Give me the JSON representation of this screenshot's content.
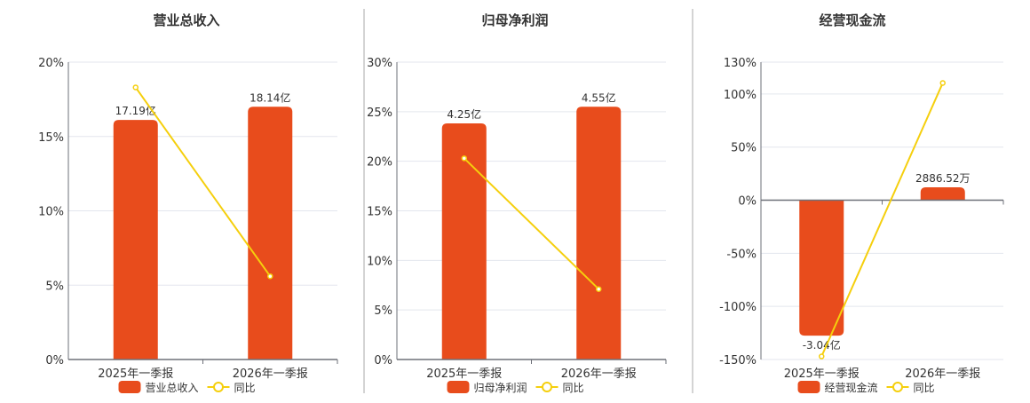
{
  "colors": {
    "bar": "#e84c1c",
    "line": "#f5cf0d",
    "grid": "#e3e6ee",
    "axis": "#6e7079",
    "text": "#333333",
    "divider": "#a9a9a9"
  },
  "chart_data": [
    {
      "type": "bar+line",
      "title": "营业总收入",
      "categories": [
        "2025年一季报",
        "2026年一季报"
      ],
      "yticks": [
        "0%",
        "5%",
        "10%",
        "15%",
        "20%"
      ],
      "ylim": [
        0,
        20
      ],
      "tick_values": [
        0,
        5,
        10,
        15,
        20
      ],
      "series": [
        {
          "name": "营业总收入",
          "kind": "bar",
          "values": [
            17.19,
            18.14
          ],
          "labels": [
            "17.19亿",
            "18.14亿"
          ],
          "unit": "亿"
        },
        {
          "name": "同比",
          "kind": "line",
          "values": [
            18.3,
            5.6
          ],
          "unit": "%"
        }
      ],
      "legend": "bottom",
      "grid": true
    },
    {
      "type": "bar+line",
      "title": "归母净利润",
      "categories": [
        "2025年一季报",
        "2026年一季报"
      ],
      "yticks": [
        "0%",
        "5%",
        "10%",
        "15%",
        "20%",
        "25%",
        "30%"
      ],
      "ylim": [
        0,
        30
      ],
      "tick_values": [
        0,
        5,
        10,
        15,
        20,
        25,
        30
      ],
      "series": [
        {
          "name": "归母净利润",
          "kind": "bar",
          "values": [
            4.25,
            4.55
          ],
          "labels": [
            "4.25亿",
            "4.55亿"
          ],
          "unit": "亿"
        },
        {
          "name": "同比",
          "kind": "line",
          "values": [
            20.3,
            7.1
          ],
          "unit": "%"
        }
      ],
      "legend": "bottom",
      "grid": true
    },
    {
      "type": "bar+line",
      "title": "经营现金流",
      "categories": [
        "2025年一季报",
        "2026年一季报"
      ],
      "yticks": [
        "-150%",
        "-100%",
        "-50%",
        "0%",
        "50%",
        "100%",
        "130%"
      ],
      "ylim": [
        -150,
        130
      ],
      "tick_values": [
        -150,
        -100,
        -50,
        0,
        50,
        100,
        130
      ],
      "series": [
        {
          "name": "经营现金流",
          "kind": "bar",
          "values": [
            -3.04,
            0.288652
          ],
          "labels": [
            "-3.04亿",
            "2886.52万"
          ],
          "unit": "亿"
        },
        {
          "name": "同比",
          "kind": "line",
          "values": [
            -147.1,
            110.4
          ],
          "unit": "%"
        }
      ],
      "legend": "bottom",
      "grid": true
    }
  ]
}
